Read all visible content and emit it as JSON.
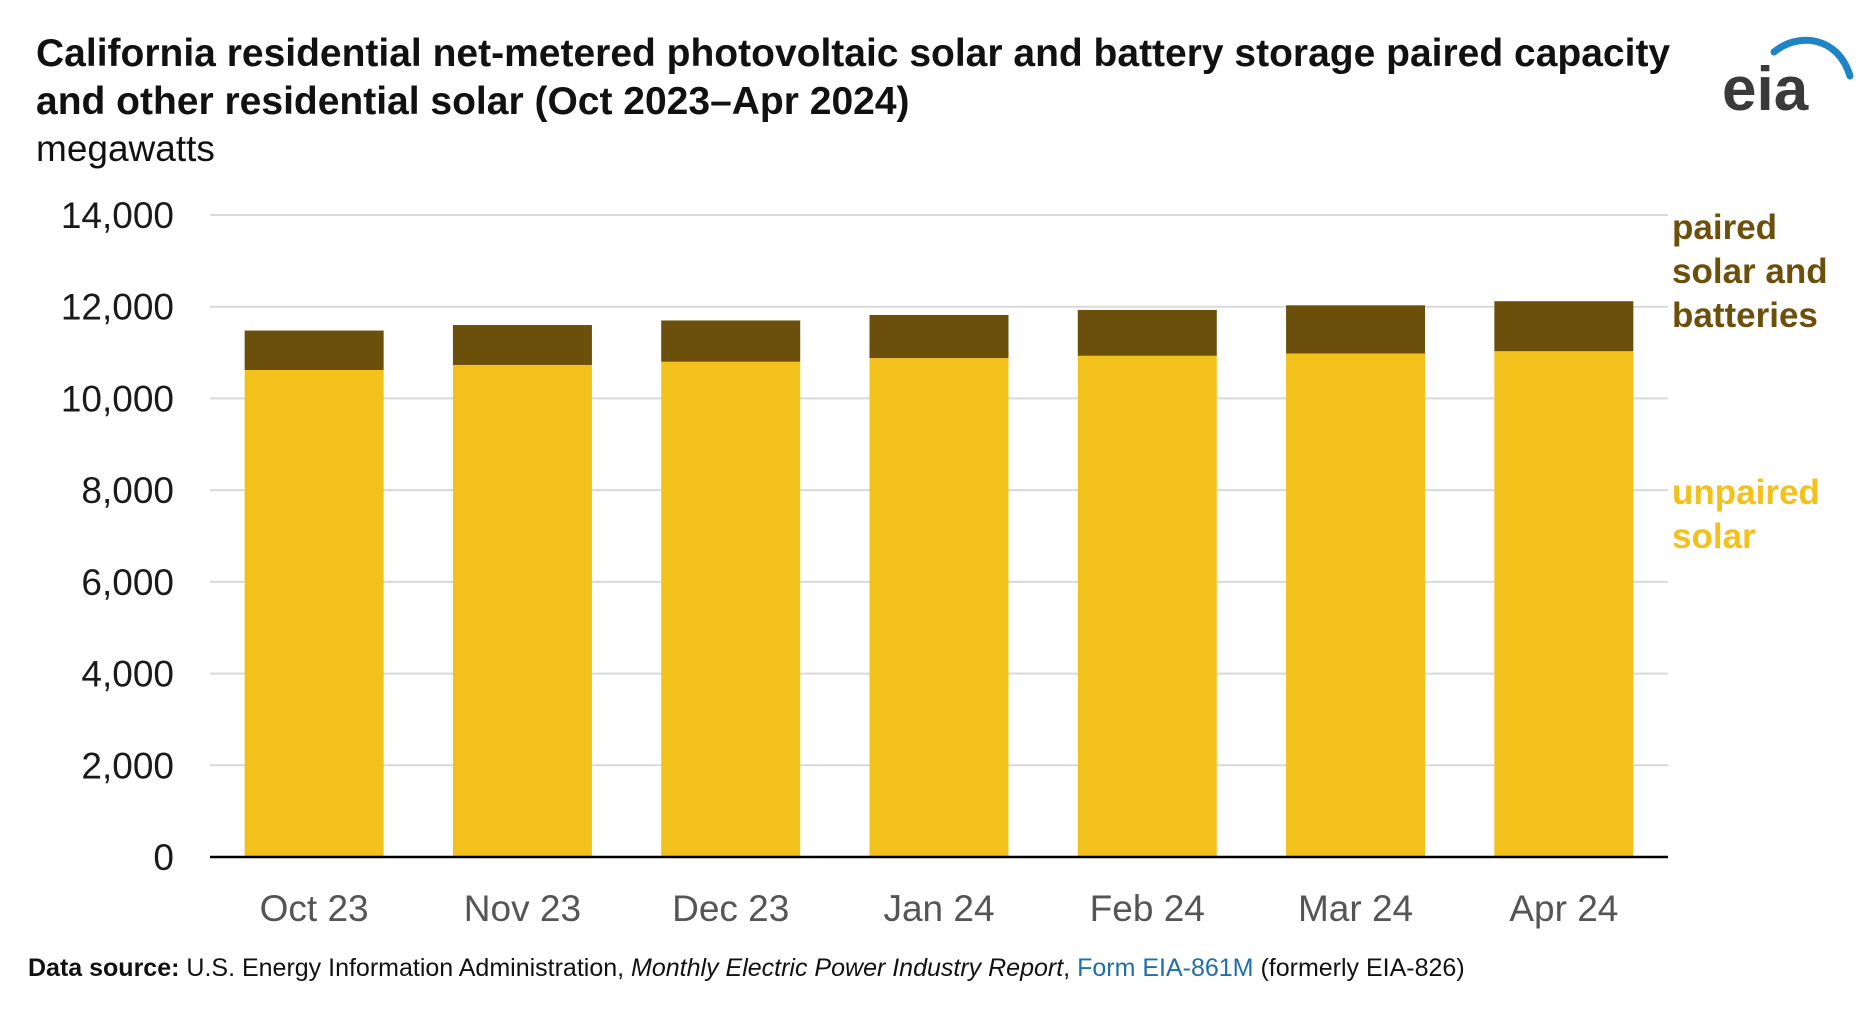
{
  "title": "California residential net-metered photovoltaic solar and battery storage paired capacity and other residential solar (Oct 2023–Apr 2024)",
  "units": "megawatts",
  "logo_text": "eia",
  "colors": {
    "paired": "#6b4f0a",
    "unpaired": "#f2c11c",
    "grid": "#d9d9d9",
    "axis": "#000000",
    "logo_arc": "#1f84c6",
    "logo_text": "#3a3a3a"
  },
  "legend": {
    "paired": "paired solar and batteries",
    "paired_lines": [
      "paired",
      "solar and",
      "batteries"
    ],
    "unpaired": "unpaired solar",
    "unpaired_lines": [
      "unpaired",
      "solar"
    ]
  },
  "source": {
    "label": "Data source:",
    "text1": " U.S. Energy Information Administration, ",
    "report": "Monthly Electric Power Industry Report",
    "text2": ", ",
    "link": "Form EIA-861M",
    "text3": " (formerly EIA-826)"
  },
  "chart_data": {
    "type": "bar",
    "stacked": true,
    "categories": [
      "Oct 23",
      "Nov 23",
      "Dec 23",
      "Jan 24",
      "Feb 24",
      "Mar 24",
      "Apr 24"
    ],
    "series": [
      {
        "name": "unpaired solar",
        "values": [
          10620,
          10730,
          10800,
          10880,
          10930,
          10980,
          11030
        ]
      },
      {
        "name": "paired solar and batteries",
        "values": [
          860,
          870,
          900,
          940,
          1000,
          1050,
          1090
        ]
      }
    ],
    "title": "California residential net-metered photovoltaic solar and battery storage paired capacity and other residential solar (Oct 2023–Apr 2024)",
    "ylabel": "megawatts",
    "ylim": [
      0,
      14000
    ],
    "yticks": [
      0,
      2000,
      4000,
      6000,
      8000,
      10000,
      12000,
      14000
    ],
    "ytick_labels": [
      "0",
      "2,000",
      "4,000",
      "6,000",
      "8,000",
      "10,000",
      "12,000",
      "14,000"
    ],
    "grid": true,
    "legend_position": "right"
  }
}
